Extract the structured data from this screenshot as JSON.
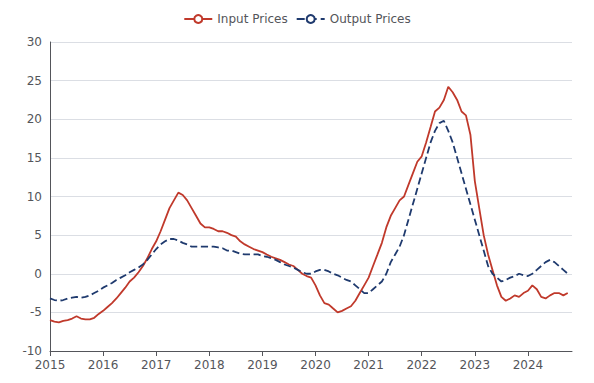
{
  "chart_data": {
    "type": "line",
    "x": [
      2015.0,
      2015.083,
      2015.167,
      2015.25,
      2015.333,
      2015.417,
      2015.5,
      2015.583,
      2015.667,
      2015.75,
      2015.833,
      2015.917,
      2016.0,
      2016.083,
      2016.167,
      2016.25,
      2016.333,
      2016.417,
      2016.5,
      2016.583,
      2016.667,
      2016.75,
      2016.833,
      2016.917,
      2017.0,
      2017.083,
      2017.167,
      2017.25,
      2017.333,
      2017.417,
      2017.5,
      2017.583,
      2017.667,
      2017.75,
      2017.833,
      2017.917,
      2018.0,
      2018.083,
      2018.167,
      2018.25,
      2018.333,
      2018.417,
      2018.5,
      2018.583,
      2018.667,
      2018.75,
      2018.833,
      2018.917,
      2019.0,
      2019.083,
      2019.167,
      2019.25,
      2019.333,
      2019.417,
      2019.5,
      2019.583,
      2019.667,
      2019.75,
      2019.833,
      2019.917,
      2020.0,
      2020.083,
      2020.167,
      2020.25,
      2020.333,
      2020.417,
      2020.5,
      2020.583,
      2020.667,
      2020.75,
      2020.833,
      2020.917,
      2021.0,
      2021.083,
      2021.167,
      2021.25,
      2021.333,
      2021.417,
      2021.5,
      2021.583,
      2021.667,
      2021.75,
      2021.833,
      2021.917,
      2022.0,
      2022.083,
      2022.167,
      2022.25,
      2022.333,
      2022.417,
      2022.5,
      2022.583,
      2022.667,
      2022.75,
      2022.833,
      2022.917,
      2023.0,
      2023.083,
      2023.167,
      2023.25,
      2023.333,
      2023.417,
      2023.5,
      2023.583,
      2023.667,
      2023.75,
      2023.833,
      2023.917,
      2024.0,
      2024.083,
      2024.167,
      2024.25,
      2024.333,
      2024.417,
      2024.5,
      2024.583,
      2024.667,
      2024.75
    ],
    "series": [
      {
        "name": "Input Prices",
        "color": "#C0392B",
        "line_style": "solid",
        "values": [
          -6.0,
          -6.2,
          -6.3,
          -6.1,
          -6.0,
          -5.8,
          -5.5,
          -5.8,
          -5.9,
          -5.9,
          -5.7,
          -5.2,
          -4.8,
          -4.3,
          -3.8,
          -3.2,
          -2.5,
          -1.8,
          -1.0,
          -0.5,
          0.2,
          1.0,
          2.0,
          3.2,
          4.2,
          5.5,
          7.0,
          8.5,
          9.5,
          10.5,
          10.2,
          9.5,
          8.5,
          7.5,
          6.5,
          6.0,
          6.0,
          5.8,
          5.5,
          5.5,
          5.3,
          5.0,
          4.8,
          4.2,
          3.8,
          3.5,
          3.2,
          3.0,
          2.8,
          2.5,
          2.2,
          2.0,
          1.8,
          1.5,
          1.2,
          1.0,
          0.5,
          0.0,
          -0.3,
          -0.5,
          -1.5,
          -2.8,
          -3.8,
          -4.0,
          -4.5,
          -5.0,
          -4.8,
          -4.5,
          -4.2,
          -3.5,
          -2.5,
          -1.5,
          -0.5,
          1.0,
          2.5,
          4.0,
          6.0,
          7.5,
          8.5,
          9.5,
          10.0,
          11.5,
          13.0,
          14.5,
          15.2,
          17.0,
          19.0,
          21.0,
          21.5,
          22.5,
          24.2,
          23.5,
          22.5,
          21.0,
          20.5,
          18.0,
          12.0,
          8.5,
          5.0,
          2.5,
          0.5,
          -1.5,
          -3.0,
          -3.5,
          -3.2,
          -2.8,
          -3.0,
          -2.5,
          -2.2,
          -1.5,
          -2.0,
          -3.0,
          -3.2,
          -2.8,
          -2.5,
          -2.5,
          -2.8,
          -2.5
        ]
      },
      {
        "name": "Output Prices",
        "color": "#1F3A6E",
        "line_style": "dashed",
        "values": [
          -3.2,
          -3.4,
          -3.5,
          -3.4,
          -3.2,
          -3.1,
          -3.0,
          -3.1,
          -3.0,
          -2.8,
          -2.5,
          -2.2,
          -1.8,
          -1.5,
          -1.2,
          -0.8,
          -0.5,
          -0.2,
          0.2,
          0.5,
          0.8,
          1.2,
          1.8,
          2.5,
          3.2,
          3.8,
          4.2,
          4.5,
          4.5,
          4.3,
          4.0,
          3.8,
          3.5,
          3.5,
          3.5,
          3.5,
          3.5,
          3.5,
          3.4,
          3.3,
          3.0,
          3.0,
          2.8,
          2.6,
          2.5,
          2.5,
          2.5,
          2.5,
          2.3,
          2.2,
          2.0,
          1.8,
          1.5,
          1.2,
          1.0,
          0.8,
          0.5,
          0.2,
          0.0,
          0.0,
          0.3,
          0.5,
          0.5,
          0.3,
          0.0,
          -0.2,
          -0.5,
          -0.8,
          -1.0,
          -1.5,
          -2.0,
          -2.5,
          -2.5,
          -2.0,
          -1.5,
          -1.0,
          0.0,
          1.5,
          2.5,
          3.5,
          5.0,
          7.0,
          9.0,
          11.0,
          13.0,
          15.0,
          17.0,
          18.5,
          19.5,
          19.8,
          18.5,
          17.0,
          15.0,
          13.0,
          11.0,
          9.0,
          7.0,
          5.0,
          3.0,
          1.0,
          0.0,
          -0.5,
          -1.0,
          -0.8,
          -0.5,
          -0.3,
          0.0,
          -0.2,
          -0.3,
          0.0,
          0.5,
          1.0,
          1.5,
          1.8,
          1.5,
          1.0,
          0.5,
          0.0
        ]
      }
    ],
    "xlim": [
      2015.0,
      2024.83
    ],
    "xticks": [
      2015,
      2016,
      2017,
      2018,
      2019,
      2020,
      2021,
      2022,
      2023,
      2024
    ],
    "ylim": [
      -10,
      30
    ],
    "yticks": [
      -10,
      -5,
      0,
      5,
      10,
      15,
      20,
      25,
      30
    ],
    "grid": true,
    "legend": "top"
  }
}
